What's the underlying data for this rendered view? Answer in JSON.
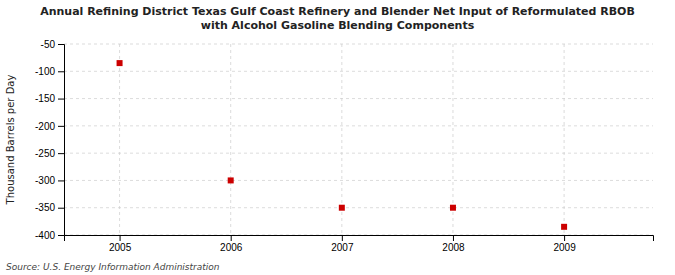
{
  "chart_data": {
    "type": "scatter",
    "title": "Annual Refining District Texas Gulf Coast Refinery and Blender Net Input of Reformulated RBOB\nwith Alcohol Gasoline Blending Components",
    "ylabel": "Thousand Barrels per Day",
    "source": "Source: U.S. Energy Information Administration",
    "x": [
      2005,
      2006,
      2007,
      2008,
      2009
    ],
    "values": [
      -85,
      -300,
      -350,
      -350,
      -385
    ],
    "xlim": [
      2004.5,
      2009.8
    ],
    "ylim": [
      -400,
      -50
    ],
    "xticks": [
      2005,
      2006,
      2007,
      2008,
      2009
    ],
    "yticks": [
      -50,
      -100,
      -150,
      -200,
      -250,
      -300,
      -350,
      -400
    ],
    "color": "#CC0000",
    "marker": "square",
    "grid": true
  }
}
